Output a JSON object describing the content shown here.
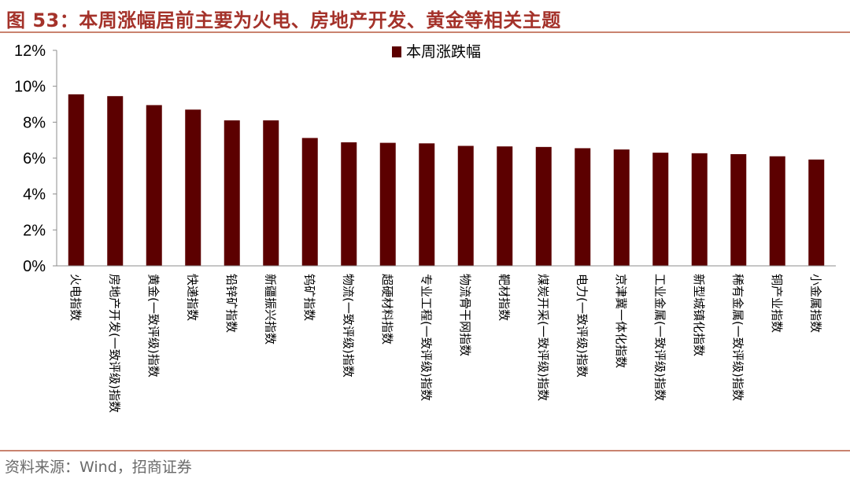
{
  "figure": {
    "title": "图 53：本周涨幅居前主要为火电、房地产开发、黄金等相关主题",
    "source": "资料来源：Wind，招商证券"
  },
  "colors": {
    "bar": "#5c0000",
    "title": "#a4322a",
    "rule": "#c9836f",
    "axis_text": "#000000",
    "axis_line": "#8c8c8c"
  },
  "chart_data": {
    "type": "bar",
    "categories": [
      "火电指数",
      "房地产开发(一致评级)指数",
      "黄金(一致评级)指数",
      "快递指数",
      "铅锌矿指数",
      "新疆振兴指数",
      "钨矿指数",
      "物流(一致评级)指数",
      "超硬材料指数",
      "专业工程(一致评级)指数",
      "物流骨干网指数",
      "靶材指数",
      "煤炭开采(一致评级)指数",
      "电力(一致评级)指数",
      "京津冀一体化指数",
      "工业金属(一致评级)指数",
      "新型城镇化指数",
      "稀有金属(一致评级)指数",
      "铜产业指数",
      "小金属指数"
    ],
    "series": [
      {
        "name": "本周涨跌幅",
        "values": [
          9.55,
          9.45,
          8.95,
          8.7,
          8.1,
          8.1,
          7.12,
          6.88,
          6.85,
          6.82,
          6.68,
          6.65,
          6.62,
          6.55,
          6.48,
          6.3,
          6.27,
          6.22,
          6.1,
          5.92
        ]
      }
    ],
    "ylim": [
      0,
      12
    ],
    "yticks": [
      0,
      2,
      4,
      6,
      8,
      10,
      12
    ],
    "ytick_labels": [
      "0%",
      "2%",
      "4%",
      "6%",
      "8%",
      "10%",
      "12%"
    ],
    "xlabel": "",
    "ylabel": "",
    "grid": false,
    "legend": "top-center"
  }
}
